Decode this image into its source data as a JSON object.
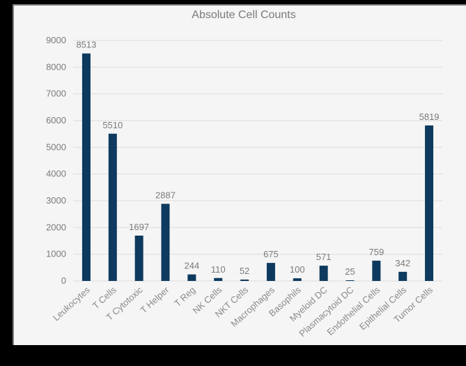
{
  "chart_data": {
    "type": "bar",
    "title": "Absolute Cell Counts",
    "xlabel": "",
    "ylabel": "",
    "categories": [
      "Leukocytes",
      "T Cells",
      "T Cytotoxic",
      "T Helper",
      "T Reg",
      "NK Cells",
      "NKT Cells",
      "Macrophages",
      "Basophils",
      "Myeloid DC",
      "Plasmacytoid DC",
      "Endothelial Cells",
      "Epithelial Cells",
      "Tumor Cells"
    ],
    "values": [
      8513,
      5510,
      1697,
      2887,
      244,
      110,
      52,
      675,
      100,
      571,
      25,
      759,
      342,
      5819
    ],
    "data_labels": [
      "8513",
      "5510",
      "1697",
      "2887",
      "244",
      "110",
      "52",
      "675",
      "100",
      "571",
      "25",
      "759",
      "342",
      "5819"
    ],
    "ylim": [
      0,
      9000
    ],
    "yticks": [
      "0",
      "1000",
      "2000",
      "3000",
      "4000",
      "5000",
      "6000",
      "7000",
      "8000",
      "9000"
    ],
    "grid": true,
    "legend": "none",
    "bar_color": "#0d3a5e"
  }
}
